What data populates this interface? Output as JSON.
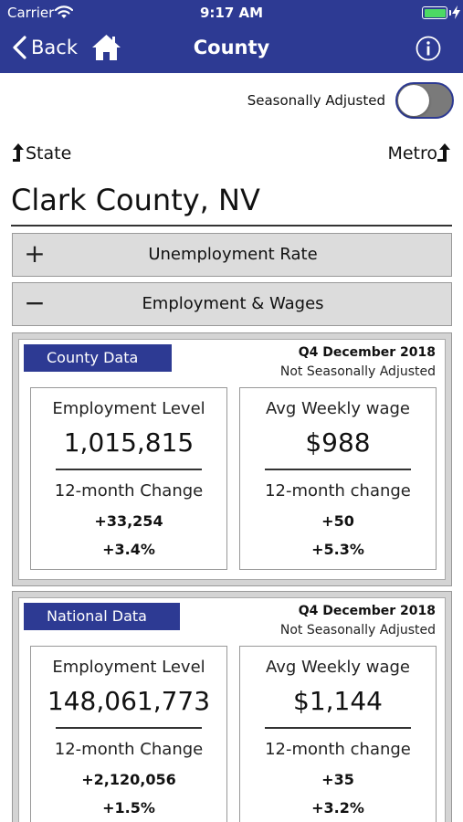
{
  "status_bar": {
    "carrier": "Carrier",
    "time": "9:17 AM",
    "wifi_icon": "wifi-icon",
    "battery_icon": "battery-icon",
    "battery_level": 1.0,
    "charging_icon": "bolt-icon"
  },
  "nav": {
    "back_label": "Back",
    "title": "County",
    "back_icon": "chevron-left-icon",
    "home_icon": "home-icon",
    "info_icon": "info-icon"
  },
  "settings": {
    "seasonally_adjusted_label": "Seasonally Adjusted",
    "seasonally_adjusted_on": false
  },
  "geo_nav": {
    "up_label": "State",
    "down_label": "Metro"
  },
  "location": {
    "name": "Clark County, NV"
  },
  "accordion": [
    {
      "sign": "+",
      "title": "Unemployment Rate",
      "expanded": false
    },
    {
      "sign": "−",
      "title": "Employment & Wages",
      "expanded": true
    }
  ],
  "panels": [
    {
      "badge": "County Data",
      "period": "Q4 December 2018",
      "adjustment": "Not Seasonally Adjusted",
      "cards": [
        {
          "title": "Employment Level",
          "value": "1,015,815",
          "change_label": "12-month Change",
          "change_abs": "+33,254",
          "change_pct": "+3.4%"
        },
        {
          "title": "Avg Weekly wage",
          "value": "$988",
          "change_label": "12-month change",
          "change_abs": "+50",
          "change_pct": "+5.3%"
        }
      ]
    },
    {
      "badge": "National Data",
      "period": "Q4 December 2018",
      "adjustment": "Not Seasonally Adjusted",
      "cards": [
        {
          "title": "Employment Level",
          "value": "148,061,773",
          "change_label": "12-month Change",
          "change_abs": "+2,120,056",
          "change_pct": "+1.5%"
        },
        {
          "title": "Avg Weekly wage",
          "value": "$1,144",
          "change_label": "12-month change",
          "change_abs": "+35",
          "change_pct": "+3.2%"
        }
      ]
    }
  ],
  "colors": {
    "nav_bar": "#2d3a93",
    "badge": "#2d3a93",
    "battery": "#4cd964",
    "toggle_off": "#7a7a7a",
    "accordion_bg": "#dcdcdc"
  }
}
